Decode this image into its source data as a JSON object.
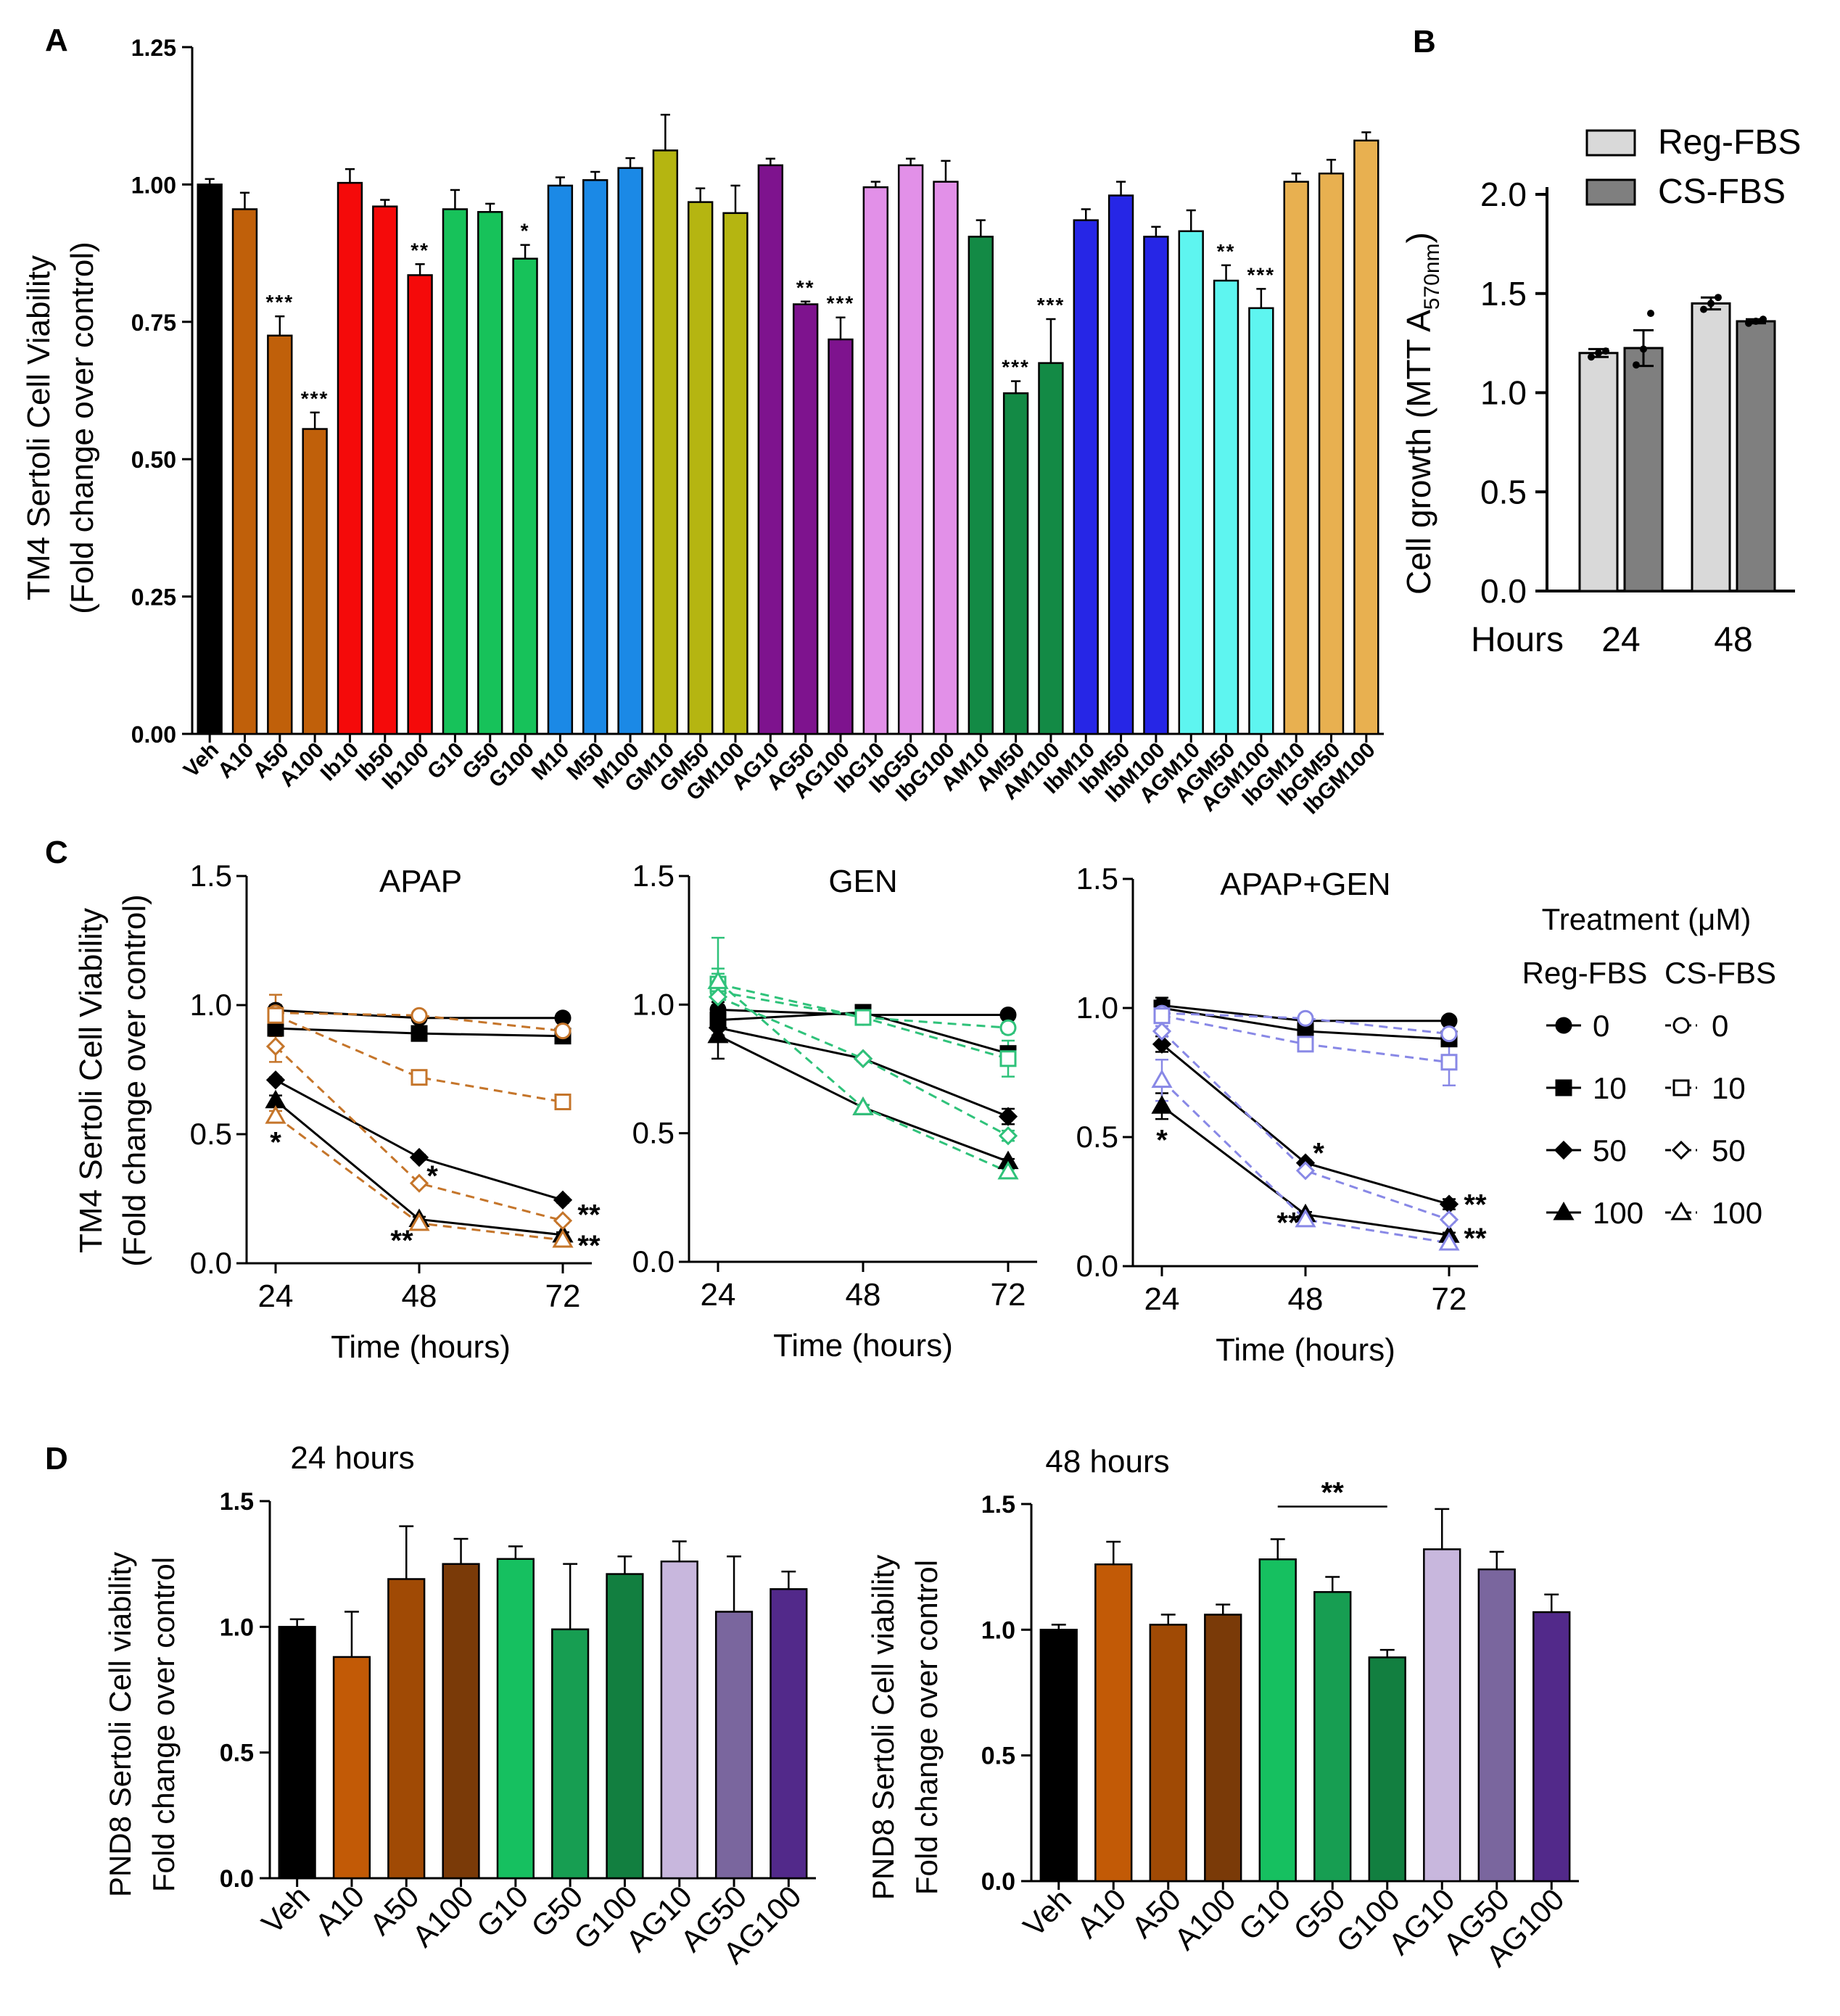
{
  "figure_title": "",
  "chart_data": [
    {
      "id": "A",
      "panel_letter": "A",
      "type": "bar",
      "ylabel_line1": "TM4 Sertoli Cell Viability",
      "ylabel_line2": "(Fold change over control)",
      "ylim": [
        0,
        1.25
      ],
      "yticks": [
        0,
        0.25,
        0.5,
        0.75,
        1.0,
        1.25
      ],
      "ytick_labels": [
        "0.00",
        "0.25",
        "0.50",
        "0.75",
        "1.00",
        "1.25"
      ],
      "categories": [
        "Veh",
        "A10",
        "A50",
        "A100",
        "Ib10",
        "Ib50",
        "Ib100",
        "G10",
        "G50",
        "G100",
        "M10",
        "M50",
        "M100",
        "GM10",
        "GM50",
        "GM100",
        "AG10",
        "AG50",
        "AG100",
        "IbG10",
        "IbG50",
        "IbG100",
        "AM10",
        "AM50",
        "AM100",
        "IbM10",
        "IbM50",
        "IbM100",
        "AGM10",
        "AGM50",
        "AGM100",
        "IbGM10",
        "IbGM50",
        "IbGM100"
      ],
      "values": [
        1.0,
        0.955,
        0.725,
        0.555,
        1.003,
        0.96,
        0.835,
        0.955,
        0.95,
        0.865,
        0.998,
        1.008,
        1.03,
        1.062,
        0.968,
        0.948,
        1.035,
        0.782,
        0.718,
        0.995,
        1.035,
        1.005,
        0.905,
        0.62,
        0.675,
        0.935,
        0.98,
        0.905,
        0.915,
        0.825,
        0.775,
        1.005,
        1.02,
        1.08
      ],
      "errors": [
        0.01,
        0.03,
        0.035,
        0.03,
        0.025,
        0.012,
        0.02,
        0.035,
        0.015,
        0.025,
        0.015,
        0.015,
        0.018,
        0.065,
        0.025,
        0.05,
        0.012,
        0.005,
        0.04,
        0.01,
        0.012,
        0.038,
        0.03,
        0.022,
        0.08,
        0.02,
        0.025,
        0.018,
        0.038,
        0.028,
        0.035,
        0.015,
        0.025,
        0.015
      ],
      "colors": [
        "#000000",
        "#C0600A",
        "#C0600A",
        "#C0600A",
        "#F50A0A",
        "#F50A0A",
        "#F50A0A",
        "#17C25A",
        "#17C25A",
        "#17C25A",
        "#1B89E6",
        "#1B89E6",
        "#1B89E6",
        "#B5B511",
        "#B5B511",
        "#B5B511",
        "#7E138E",
        "#7E138E",
        "#7E138E",
        "#E290E8",
        "#E290E8",
        "#E290E8",
        "#138A45",
        "#138A45",
        "#138A45",
        "#2626E6",
        "#2626E6",
        "#2626E6",
        "#5EF5F0",
        "#5EF5F0",
        "#5EF5F0",
        "#E8B050",
        "#E8B050",
        "#E8B050"
      ],
      "significance": [
        "",
        "",
        "***",
        "***",
        "",
        "",
        "**",
        "",
        "",
        "*",
        "",
        "",
        "",
        "",
        "",
        "",
        "",
        "**",
        "***",
        "",
        "",
        "",
        "",
        "***",
        "***",
        "",
        "",
        "",
        "",
        "**",
        "***",
        "",
        "",
        ""
      ]
    },
    {
      "id": "B",
      "panel_letter": "B",
      "type": "bar",
      "ylabel": "Cell growth (MTT  A",
      "ylabel_sub": "570nm",
      "ylabel_close": ")",
      "ylim": [
        0,
        2.0
      ],
      "yticks": [
        0,
        0.5,
        1.0,
        1.5,
        2.0
      ],
      "ytick_labels": [
        "0.0",
        "0.5",
        "1.0",
        "1.5",
        "2.0"
      ],
      "xlabel": "Hours",
      "categories": [
        "24",
        "48"
      ],
      "series": [
        {
          "name": "Reg-FBS",
          "color": "#D9D9D9",
          "values": [
            1.2,
            1.45
          ],
          "errors": [
            0.02,
            0.03
          ],
          "points": [
            [
              1.18,
              1.2,
              1.21
            ],
            [
              1.42,
              1.45,
              1.48
            ]
          ]
        },
        {
          "name": "CS-FBS",
          "color": "#7F7F7F",
          "values": [
            1.225,
            1.36
          ],
          "errors": [
            0.09,
            0.01
          ],
          "points": [
            [
              1.14,
              1.22,
              1.4
            ],
            [
              1.35,
              1.36,
              1.37
            ]
          ]
        }
      ]
    },
    {
      "id": "C1",
      "panel_letter": "C",
      "type": "line",
      "title": "APAP",
      "ylabel_line1": "TM4 Sertoli Cell Viability",
      "ylabel_line2": "(Fold change over control)",
      "xlabel": "Time (hours)",
      "x": [
        24,
        48,
        72
      ],
      "ylim": [
        0,
        1.5
      ],
      "yticks": [
        0,
        0.5,
        1.0,
        1.5
      ],
      "ytick_labels": [
        "0.0",
        "0.5",
        "1.0",
        "1.5"
      ],
      "dashed_color": "#C5752A",
      "series": [
        {
          "name": "Reg-FBS 0",
          "dose": "0",
          "medium": "Reg-FBS",
          "marker": "circle",
          "values": [
            0.98,
            0.95,
            0.95
          ],
          "errors": [
            0.02,
            0.01,
            0.01
          ]
        },
        {
          "name": "Reg-FBS 10",
          "dose": "10",
          "medium": "Reg-FBS",
          "marker": "square",
          "values": [
            0.91,
            0.89,
            0.88
          ],
          "errors": [
            0.02,
            0.02,
            0.01
          ]
        },
        {
          "name": "Reg-FBS 50",
          "dose": "50",
          "medium": "Reg-FBS",
          "marker": "diamond",
          "values": [
            0.71,
            0.41,
            0.245
          ],
          "errors": [
            0.01,
            0.01,
            0.01
          ]
        },
        {
          "name": "Reg-FBS 100",
          "dose": "100",
          "medium": "Reg-FBS",
          "marker": "triangle",
          "values": [
            0.63,
            0.17,
            0.11
          ],
          "errors": [
            0.02,
            0.01,
            0.01
          ]
        },
        {
          "name": "CS-FBS 0",
          "dose": "0",
          "medium": "CS-FBS",
          "marker": "circle",
          "values": [
            0.97,
            0.96,
            0.9
          ],
          "errors": [
            0.03,
            0.01,
            0.01
          ]
        },
        {
          "name": "CS-FBS 10",
          "dose": "10",
          "medium": "CS-FBS",
          "marker": "square",
          "values": [
            0.96,
            0.72,
            0.625
          ],
          "errors": [
            0.08,
            0.01,
            0.01
          ]
        },
        {
          "name": "CS-FBS 50",
          "dose": "50",
          "medium": "CS-FBS",
          "marker": "diamond",
          "values": [
            0.84,
            0.31,
            0.165
          ],
          "errors": [
            0.06,
            0.01,
            0.01
          ]
        },
        {
          "name": "CS-FBS 100",
          "dose": "100",
          "medium": "CS-FBS",
          "marker": "triangle",
          "values": [
            0.57,
            0.155,
            0.09
          ],
          "errors": [
            0.02,
            0.01,
            0.01
          ]
        }
      ],
      "annotations": [
        {
          "text": "*",
          "x": 24,
          "y": 0.47
        },
        {
          "text": "*",
          "x": 48,
          "y": 0.34
        },
        {
          "text": "**",
          "x": 48,
          "y": 0.09
        },
        {
          "text": "**",
          "x": 72,
          "y": 0.19
        },
        {
          "text": "**",
          "x": 72,
          "y": 0.07
        }
      ]
    },
    {
      "id": "C2",
      "panel_letter": "",
      "type": "line",
      "title": "GEN",
      "xlabel": "Time (hours)",
      "x": [
        24,
        48,
        72
      ],
      "ylim": [
        0,
        1.5
      ],
      "yticks": [
        0,
        0.5,
        1.0,
        1.5
      ],
      "ytick_labels": [
        "0.0",
        "0.5",
        "1.0",
        "1.5"
      ],
      "dashed_color": "#2FC27A",
      "series": [
        {
          "name": "Reg-FBS 0",
          "dose": "0",
          "medium": "Reg-FBS",
          "marker": "circle",
          "values": [
            0.98,
            0.96,
            0.96
          ],
          "errors": [
            0.03,
            0.01,
            0.01
          ]
        },
        {
          "name": "Reg-FBS 10",
          "dose": "10",
          "medium": "Reg-FBS",
          "marker": "square",
          "values": [
            0.94,
            0.97,
            0.81
          ],
          "errors": [
            0.06,
            0.01,
            0.02
          ]
        },
        {
          "name": "Reg-FBS 50",
          "dose": "50",
          "medium": "Reg-FBS",
          "marker": "diamond",
          "values": [
            0.91,
            0.79,
            0.565
          ],
          "errors": [
            0.03,
            0.01,
            0.03
          ]
        },
        {
          "name": "Reg-FBS 100",
          "dose": "100",
          "medium": "Reg-FBS",
          "marker": "triangle",
          "values": [
            0.88,
            0.6,
            0.39
          ],
          "errors": [
            0.09,
            0.01,
            0.01
          ]
        },
        {
          "name": "CS-FBS 0",
          "dose": "0",
          "medium": "CS-FBS",
          "marker": "circle",
          "values": [
            1.05,
            0.95,
            0.91
          ],
          "errors": [
            0.05,
            0.02,
            0.02
          ]
        },
        {
          "name": "CS-FBS 10",
          "dose": "10",
          "medium": "CS-FBS",
          "marker": "square",
          "values": [
            1.08,
            0.95,
            0.79
          ],
          "errors": [
            0.18,
            0.02,
            0.07
          ]
        },
        {
          "name": "CS-FBS 50",
          "dose": "50",
          "medium": "CS-FBS",
          "marker": "diamond",
          "values": [
            1.03,
            0.79,
            0.49
          ],
          "errors": [
            0.09,
            0.01,
            0.02
          ]
        },
        {
          "name": "CS-FBS 100",
          "dose": "100",
          "medium": "CS-FBS",
          "marker": "triangle",
          "values": [
            1.09,
            0.6,
            0.35
          ],
          "errors": [
            0.05,
            0.01,
            0.01
          ]
        }
      ],
      "annotations": []
    },
    {
      "id": "C3",
      "panel_letter": "",
      "type": "line",
      "title": "APAP+GEN",
      "xlabel": "Time (hours)",
      "x": [
        24,
        48,
        72
      ],
      "ylim": [
        0,
        1.5
      ],
      "yticks": [
        0,
        0.5,
        1.0,
        1.5
      ],
      "ytick_labels": [
        "0.0",
        "0.5",
        "1.0",
        "1.5"
      ],
      "dashed_color": "#8888E6",
      "series": [
        {
          "name": "Reg-FBS 0",
          "dose": "0",
          "medium": "Reg-FBS",
          "marker": "circle",
          "values": [
            1.01,
            0.95,
            0.95
          ],
          "errors": [
            0.03,
            0.01,
            0.01
          ]
        },
        {
          "name": "Reg-FBS 10",
          "dose": "10",
          "medium": "Reg-FBS",
          "marker": "square",
          "values": [
            1.0,
            0.91,
            0.88
          ],
          "errors": [
            0.03,
            0.02,
            0.02
          ]
        },
        {
          "name": "Reg-FBS 50",
          "dose": "50",
          "medium": "Reg-FBS",
          "marker": "diamond",
          "values": [
            0.86,
            0.4,
            0.24
          ],
          "errors": [
            0.03,
            0.01,
            0.02
          ]
        },
        {
          "name": "Reg-FBS 100",
          "dose": "100",
          "medium": "Reg-FBS",
          "marker": "triangle",
          "values": [
            0.62,
            0.2,
            0.12
          ],
          "errors": [
            0.05,
            0.01,
            0.01
          ]
        },
        {
          "name": "CS-FBS 0",
          "dose": "0",
          "medium": "CS-FBS",
          "marker": "circle",
          "values": [
            0.98,
            0.96,
            0.9
          ],
          "errors": [
            0.05,
            0.01,
            0.01
          ]
        },
        {
          "name": "CS-FBS 10",
          "dose": "10",
          "medium": "CS-FBS",
          "marker": "square",
          "values": [
            0.97,
            0.86,
            0.79
          ],
          "errors": [
            0.05,
            0.02,
            0.09
          ]
        },
        {
          "name": "CS-FBS 50",
          "dose": "50",
          "medium": "CS-FBS",
          "marker": "diamond",
          "values": [
            0.91,
            0.37,
            0.18
          ],
          "errors": [
            0.05,
            0.01,
            0.01
          ]
        },
        {
          "name": "CS-FBS 100",
          "dose": "100",
          "medium": "CS-FBS",
          "marker": "triangle",
          "values": [
            0.72,
            0.18,
            0.09
          ],
          "errors": [
            0.08,
            0.01,
            0.01
          ]
        }
      ],
      "annotations": [
        {
          "text": "*",
          "x": 24,
          "y": 0.49
        },
        {
          "text": "*",
          "x": 48,
          "y": 0.44
        },
        {
          "text": "**",
          "x": 48,
          "y": 0.17
        },
        {
          "text": "**",
          "x": 72,
          "y": 0.24
        },
        {
          "text": "**",
          "x": 72,
          "y": 0.11
        }
      ]
    },
    {
      "id": "D1",
      "panel_letter": "D",
      "type": "bar",
      "title": "24 hours",
      "ylabel_line1": "PND8 Sertoli Cell viability",
      "ylabel_line2": "Fold change over control",
      "ylim": [
        0,
        1.5
      ],
      "yticks": [
        0,
        0.5,
        1.0,
        1.5
      ],
      "ytick_labels": [
        "0.0",
        "0.5",
        "1.0",
        "1.5"
      ],
      "categories": [
        "Veh",
        "A10",
        "A50",
        "A100",
        "G10",
        "G50",
        "G100",
        "AG10",
        "AG50",
        "AG100"
      ],
      "values": [
        1.0,
        0.88,
        1.19,
        1.25,
        1.27,
        0.99,
        1.21,
        1.26,
        1.06,
        1.15
      ],
      "errors": [
        0.03,
        0.18,
        0.21,
        0.1,
        0.05,
        0.26,
        0.07,
        0.08,
        0.22,
        0.07
      ],
      "colors": [
        "#000000",
        "#C25A06",
        "#A04A05",
        "#7A3A08",
        "#16C060",
        "#179E52",
        "#127F40",
        "#C8B7DD",
        "#7A669E",
        "#52298A"
      ],
      "significance": [],
      "bracket": null
    },
    {
      "id": "D2",
      "panel_letter": "",
      "type": "bar",
      "title": "48 hours",
      "ylabel_line1": "PND8 Sertoli Cell viability",
      "ylabel_line2": "Fold change over control",
      "ylim": [
        0,
        1.5
      ],
      "yticks": [
        0,
        0.5,
        1.0,
        1.5
      ],
      "ytick_labels": [
        "0.0",
        "0.5",
        "1.0",
        "1.5"
      ],
      "categories": [
        "Veh",
        "A10",
        "A50",
        "A100",
        "G10",
        "G50",
        "G100",
        "AG10",
        "AG50",
        "AG100"
      ],
      "values": [
        1.0,
        1.26,
        1.02,
        1.06,
        1.28,
        1.15,
        0.89,
        1.32,
        1.24,
        1.07
      ],
      "errors": [
        0.02,
        0.09,
        0.04,
        0.04,
        0.08,
        0.06,
        0.03,
        0.16,
        0.07,
        0.07
      ],
      "colors": [
        "#000000",
        "#C25A06",
        "#A04A05",
        "#7A3A08",
        "#16C060",
        "#179E52",
        "#127F40",
        "#C8B7DD",
        "#7A669E",
        "#52298A"
      ],
      "significance": [],
      "bracket": {
        "from": "G10",
        "to": "G100",
        "text": "**",
        "y": 1.49
      }
    }
  ],
  "legend_C": {
    "title": "Treatment (μM)",
    "col1": "Reg-FBS",
    "col2": "CS-FBS",
    "rows": [
      {
        "marker": "circle",
        "dose": "0"
      },
      {
        "marker": "square",
        "dose": "10"
      },
      {
        "marker": "diamond",
        "dose": "50"
      },
      {
        "marker": "triangle",
        "dose": "100"
      }
    ]
  }
}
